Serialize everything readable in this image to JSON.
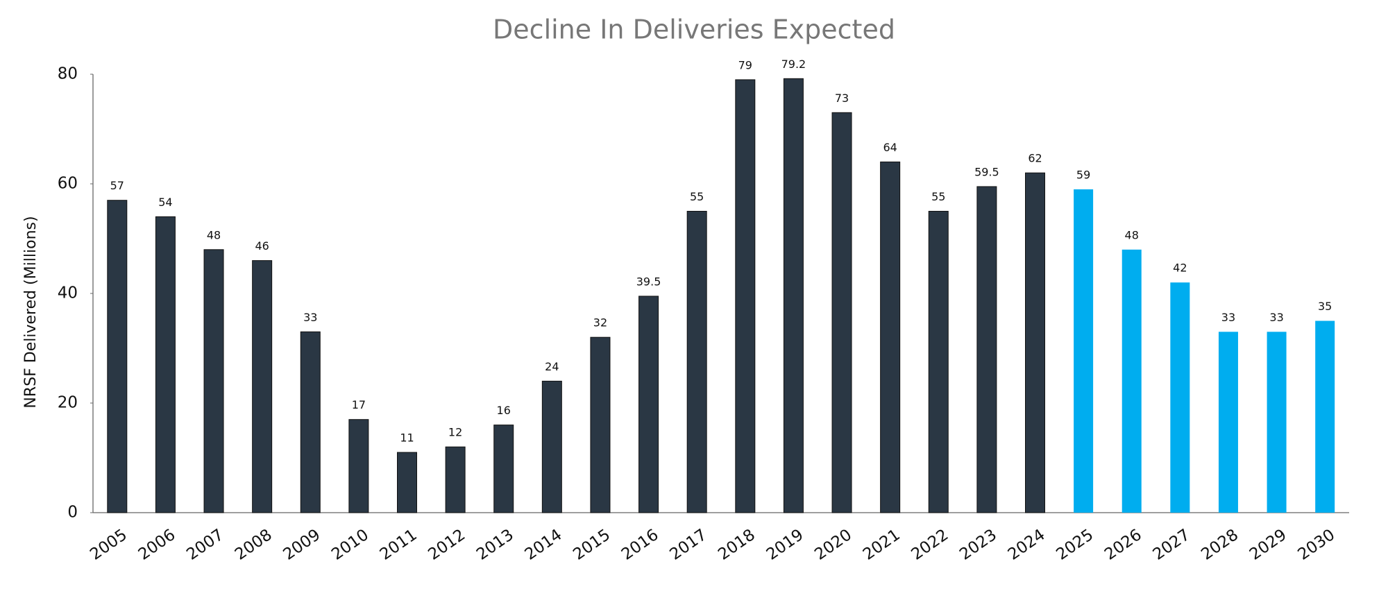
{
  "chart_data": {
    "type": "bar",
    "title": "Decline In Deliveries Expected",
    "y_label": "NRSF Delivered (Millions)",
    "categories": [
      "2005",
      "2006",
      "2007",
      "2008",
      "2009",
      "2010",
      "2011",
      "2012",
      "2013",
      "2014",
      "2015",
      "2016",
      "2017",
      "2018",
      "2019",
      "2020",
      "2021",
      "2022",
      "2023",
      "2024",
      "2025",
      "2026",
      "2027",
      "2028",
      "2029",
      "2030"
    ],
    "values": [
      57,
      54,
      48,
      46,
      33,
      17,
      11,
      12,
      16,
      24,
      32,
      39.5,
      55,
      79,
      79.2,
      73,
      64,
      55,
      59.5,
      62,
      59,
      48,
      42,
      33,
      33,
      35
    ],
    "colors": [
      "#2a3744",
      "#2a3744",
      "#2a3744",
      "#2a3744",
      "#2a3744",
      "#2a3744",
      "#2a3744",
      "#2a3744",
      "#2a3744",
      "#2a3744",
      "#2a3744",
      "#2a3744",
      "#2a3744",
      "#2a3744",
      "#2a3744",
      "#2a3744",
      "#2a3744",
      "#2a3744",
      "#2a3744",
      "#2a3744",
      "#00adef",
      "#00adef",
      "#00adef",
      "#00adef",
      "#00adef",
      "#00adef"
    ],
    "ylim": [
      0,
      80
    ],
    "yticks": [
      0,
      20,
      40,
      60,
      80
    ],
    "grid": false
  }
}
